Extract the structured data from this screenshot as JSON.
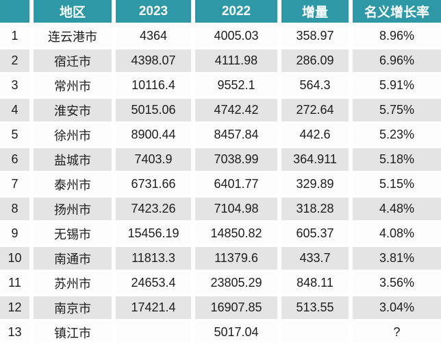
{
  "colors": {
    "header_bg": "#2E98A6",
    "header_text": "#FFFFFF",
    "row_odd_bg": "#FDFDFD",
    "row_even_bg": "#E4E4E4",
    "cell_text": "#1C1C1C",
    "separator": "#FFFFFF"
  },
  "chart_data": {
    "type": "table",
    "title": "",
    "columns": [
      "",
      "地区",
      "2023",
      "2022",
      "增量",
      "名义增长率"
    ],
    "rows": [
      [
        "1",
        "连云港市",
        "4364",
        "4005.03",
        "358.97",
        "8.96%"
      ],
      [
        "2",
        "宿迁市",
        "4398.07",
        "4111.98",
        "286.09",
        "6.96%"
      ],
      [
        "3",
        "常州市",
        "10116.4",
        "9552.1",
        "564.3",
        "5.91%"
      ],
      [
        "4",
        "淮安市",
        "5015.06",
        "4742.42",
        "272.64",
        "5.75%"
      ],
      [
        "5",
        "徐州市",
        "8900.44",
        "8457.84",
        "442.6",
        "5.23%"
      ],
      [
        "6",
        "盐城市",
        "7403.9",
        "7038.99",
        "364.911",
        "5.18%"
      ],
      [
        "7",
        "泰州市",
        "6731.66",
        "6401.77",
        "329.89",
        "5.15%"
      ],
      [
        "8",
        "扬州市",
        "7423.26",
        "7104.98",
        "318.28",
        "4.48%"
      ],
      [
        "9",
        "无锡市",
        "15456.19",
        "14850.82",
        "605.37",
        "4.08%"
      ],
      [
        "10",
        "南通市",
        "11813.3",
        "11379.6",
        "433.7",
        "3.81%"
      ],
      [
        "11",
        "苏州市",
        "24653.4",
        "23805.29",
        "848.11",
        "3.56%"
      ],
      [
        "12",
        "南京市",
        "17421.4",
        "16907.85",
        "513.55",
        "3.04%"
      ],
      [
        "13",
        "镇江市",
        "",
        "5017.04",
        "",
        "?"
      ]
    ]
  }
}
